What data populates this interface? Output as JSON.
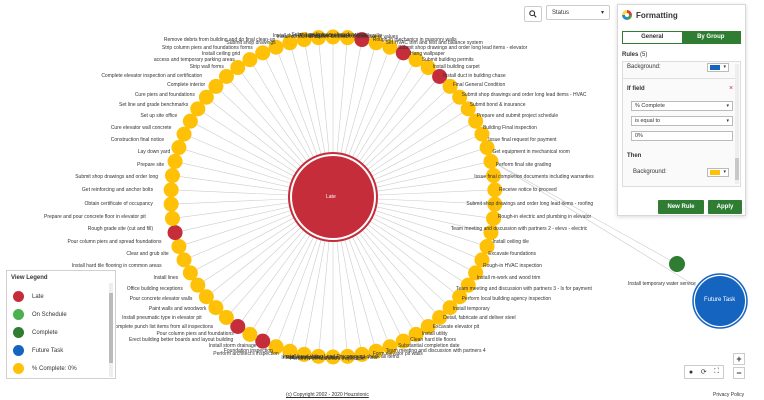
{
  "toolbar": {
    "search_icon": "search-icon",
    "status_label": "Status"
  },
  "formatting": {
    "title": "Formatting",
    "tabs": [
      {
        "label": "General",
        "active": false
      },
      {
        "label": "By Group",
        "active": true
      }
    ],
    "rules_label": "Rules",
    "rules_count": "(5)",
    "background_label": "Background:",
    "background_color_top": "#1565c0",
    "if_field_label": "If field",
    "field_value": "% Complete",
    "operator_value": "is equal to",
    "compare_value": "0%",
    "then_label": "Then",
    "then_background_label": "Background:",
    "then_color": "#ffc107",
    "new_rule_label": "New Rule",
    "apply_label": "Apply"
  },
  "legend": {
    "title": "View Legend",
    "items": [
      {
        "label": "Late",
        "color": "#c62d3a"
      },
      {
        "label": "On Schedule",
        "color": "#4caf50"
      },
      {
        "label": "Complete",
        "color": "#2e7d32"
      },
      {
        "label": "Future Task",
        "color": "#1565c0"
      },
      {
        "label": "% Complete: 0%",
        "color": "#ffc107"
      }
    ]
  },
  "graph": {
    "center_label": "Late",
    "future_label": "Future Task",
    "temp_water_label": "Install temporary water service",
    "colors": {
      "late": "#c62d3a",
      "pending": "#ffc107",
      "complete": "#2e7d32",
      "future": "#1565c0",
      "link": "#cccccc"
    },
    "labels": [
      "Submit preliminary shop drawings",
      "Rough-in mechanical in drywall walls",
      "Prepare and submit schedule of values",
      "Rough-in mechanics in masonry walls",
      "Set HVAC trim and test and balance system",
      "Submit shop drawings and order long lead items - elevator",
      "Hang wallpaper",
      "Submit building permits",
      "Install building carpet",
      "Install duct in building chase",
      "Final General Condition",
      "Submit shop drawings and order long lead items - HVAC",
      "Submit bond & insurance",
      "Prepare and submit project schedule",
      "Building Final inspection",
      "Issue final request for payment",
      "Get equipment in mechanical room",
      "Perform final site grading",
      "Issue final completion documents including warranties",
      "Receive notice to proceed",
      "Submit shop drawings and order long lead items - roofing",
      "Rough-in electric and plumbing in elevator",
      "Team meeting and discussion with partners 2 - elevs - electric",
      "Install ceiling tile",
      "Excavate foundations",
      "Rough-in HVAC inspection",
      "Install m-work and wood trim",
      "Team meeting and discussion with partners 3 - ls for payment",
      "Perform local building agency inspection",
      "Install temporary",
      "Detail, fabricate and deliver steel",
      "Excavate elevator pit",
      "Install utility",
      "Clean hard tile floors",
      "Substantial completion date",
      "Team meeting and discussion with partners 4",
      "Form elevator pit walls",
      "Long Lead Procurement check all items",
      "Install exterior fire line and building fire riser",
      "Perform Fire Marshal's inspection",
      "Finish temporary utilities",
      "Install hand rails",
      "Perform architect's inspection",
      "Foundation inspection",
      "Install storm drainage",
      "Erect building better boards and layout building",
      "Pour column piers and foundations",
      "Complete punch list items from all inspections",
      "Install pneumatic type in elevator pit",
      "Paint walls and woodwork",
      "Pour concrete elevator walls",
      "Office building receptions",
      "Install lines",
      "Install hard tile flooring in common areas",
      "Clear and grub site",
      "Pour column piers and spread foundations",
      "Rough grade site (cut and fill)",
      "Prepare and pour concrete floor in elevator pit",
      "Obtain certificate of occupancy",
      "Get reinforcing and anchor bolts",
      "Submit shop drawings and order long",
      "Prepare site",
      "Lay down yard",
      "Construction final notice",
      "Cure elevator wall concrete",
      "Set up site office",
      "Set line and grade benchmarks",
      "Cure piers and foundations",
      "Complete interior",
      "Complete elevator inspection and certification",
      "Strip wall forms",
      "access and temporary parking areas",
      "Install ceiling grid",
      "Strip column piers and foundations forms",
      "Submit shop drawings",
      "Remove debris from building and do final clean-up",
      "Install conduit at site",
      "Install duct in ceiling plenum space"
    ]
  }
}
